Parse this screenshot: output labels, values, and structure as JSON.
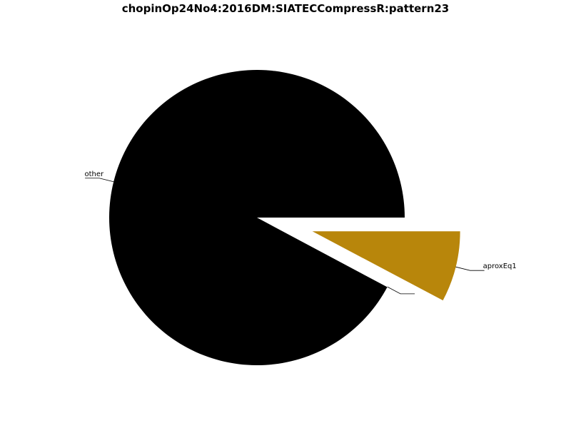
{
  "chart_data": {
    "type": "pie",
    "title": "chopinOp24No4:2016DM:SIATECCompressR:pattern23",
    "slices": [
      {
        "label": "other",
        "value": 92.2,
        "color": "#000000",
        "explode": false
      },
      {
        "label": "",
        "value": 0.05,
        "color": "#ffffff",
        "explode": false
      },
      {
        "label": "aproxEq1",
        "value": 7.75,
        "color": "#b8860b",
        "explode": true
      }
    ]
  }
}
